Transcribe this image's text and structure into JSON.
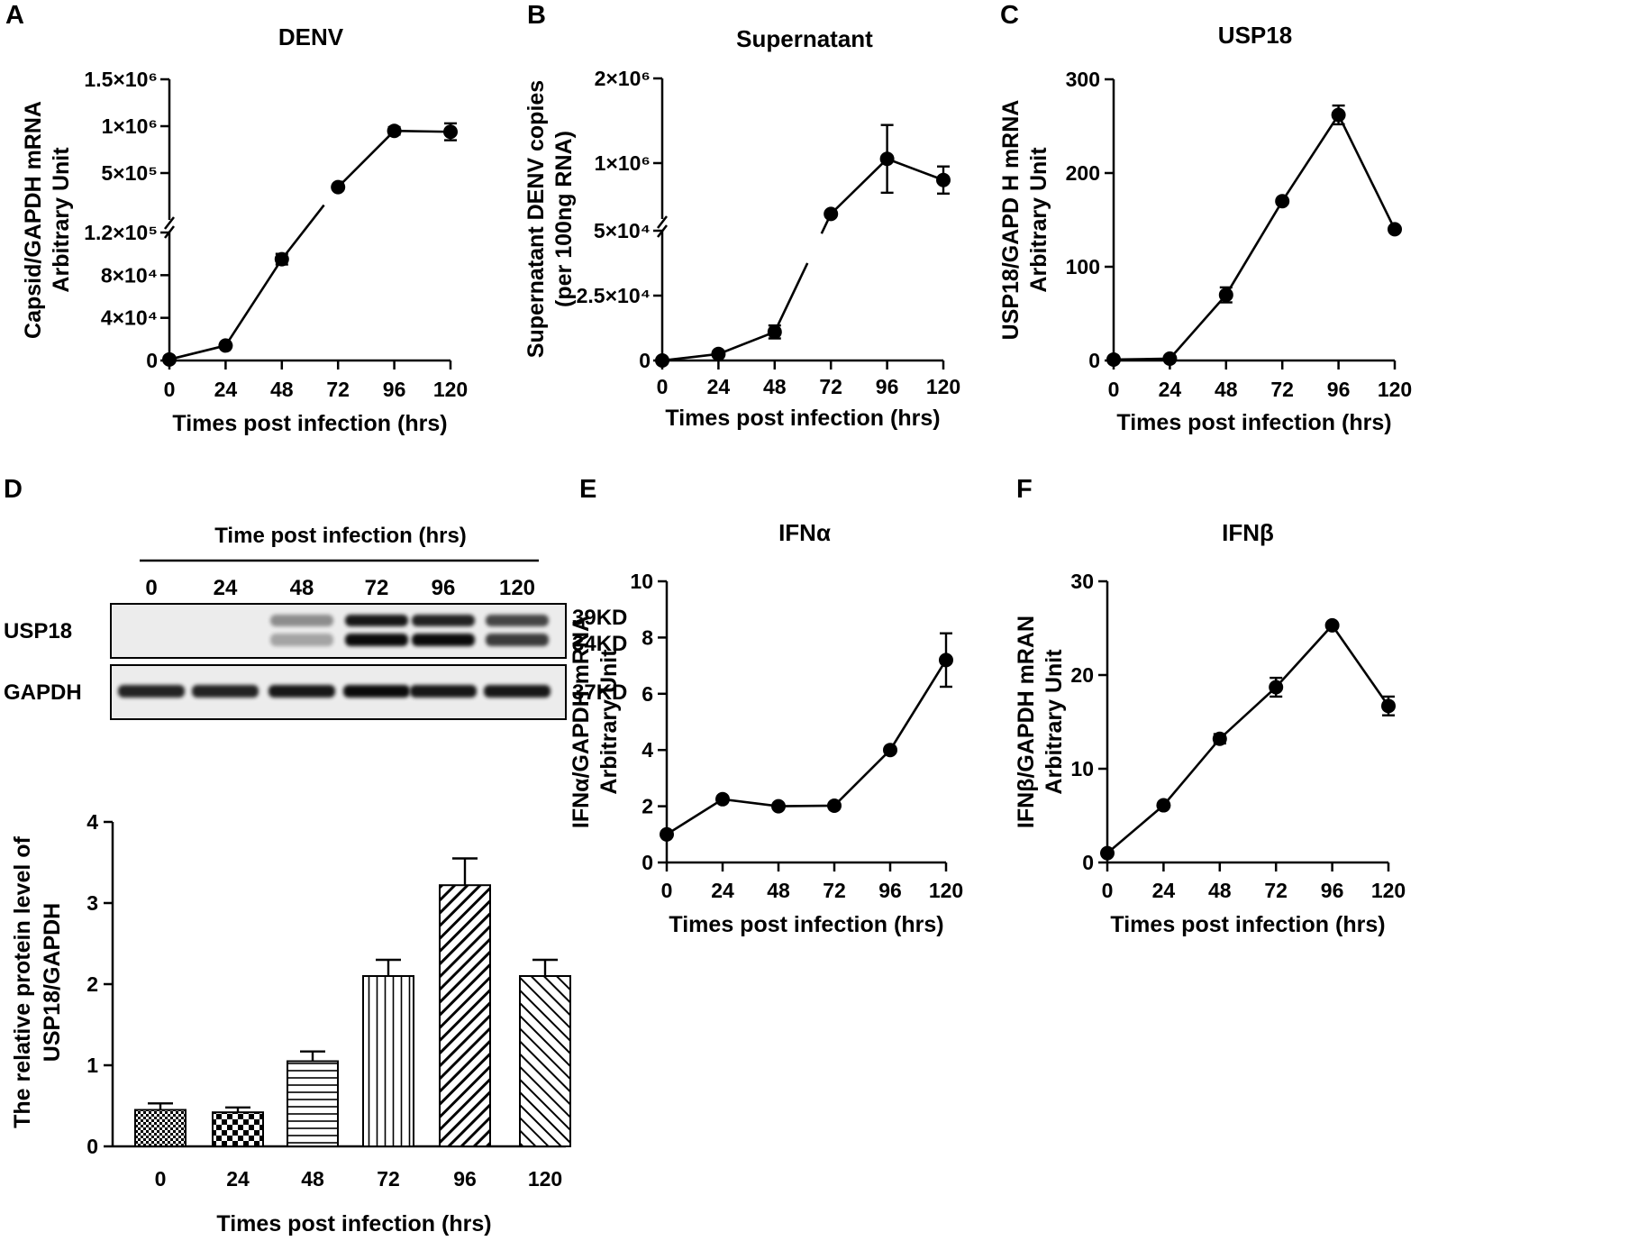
{
  "chart_data": [
    {
      "id": "A",
      "panel_label": "A",
      "type": "line",
      "title": "DENV",
      "ylabel": [
        "Capsid/GAPDH mRNA",
        "Arbitrary Unit"
      ],
      "xlabel": "Times post infection (hrs)",
      "x": [
        0,
        24,
        48,
        72,
        96,
        120
      ],
      "y": [
        1000,
        14000,
        95000,
        350000,
        950000,
        940000
      ],
      "err": [
        0,
        1500,
        5000,
        0,
        40000,
        90000
      ],
      "broken_axis": true,
      "lower_ylim": [
        0,
        120000
      ],
      "upper_ylim": [
        0,
        1500000
      ],
      "break_segment_x": [
        66,
        74
      ],
      "lower_ticks": [
        {
          "v": 0,
          "label": "0"
        },
        {
          "v": 40000,
          "label": "4×10⁴"
        },
        {
          "v": 80000,
          "label": "8×10⁴"
        },
        {
          "v": 120000,
          "label": "1.2×10⁵"
        }
      ],
      "upper_ticks": [
        {
          "v": 500000,
          "label": "5×10⁵"
        },
        {
          "v": 1000000,
          "label": "1×10⁶"
        },
        {
          "v": 1500000,
          "label": "1.5×10⁶"
        }
      ],
      "xticks": [
        "0",
        "24",
        "48",
        "72",
        "96",
        "120"
      ]
    },
    {
      "id": "B",
      "panel_label": "B",
      "type": "line",
      "title": "Supernatant",
      "ylabel": [
        "Supernatant DENV copies",
        "(per 100ng RNA)"
      ],
      "xlabel": "Times post infection (hrs)",
      "x": [
        0,
        24,
        48,
        72,
        96,
        120
      ],
      "y": [
        0,
        2500,
        11000,
        400000,
        1050000,
        800000
      ],
      "err": [
        0,
        1000,
        2500,
        25000,
        400000,
        160000
      ],
      "broken_axis": true,
      "lower_ylim": [
        0,
        50000
      ],
      "upper_ylim": [
        340000,
        2000000
      ],
      "break_segment_x": [
        62,
        68
      ],
      "lower_ticks": [
        {
          "v": 0,
          "label": "0"
        },
        {
          "v": 25000,
          "label": "2.5×10⁴"
        },
        {
          "v": 50000,
          "label": "5×10⁴"
        }
      ],
      "upper_ticks": [
        {
          "v": 1000000,
          "label": "1×10⁶"
        },
        {
          "v": 2000000,
          "label": "2×10⁶"
        }
      ],
      "xticks": [
        "0",
        "24",
        "48",
        "72",
        "96",
        "120"
      ]
    },
    {
      "id": "C",
      "panel_label": "C",
      "type": "line",
      "title": "USP18",
      "ylabel": [
        "USP18/GAPD H mRNA",
        "Arbitrary Unit"
      ],
      "xlabel": "Times post infection (hrs)",
      "x": [
        0,
        24,
        48,
        72,
        96,
        120
      ],
      "y": [
        1,
        2,
        70,
        170,
        262,
        140
      ],
      "err": [
        0,
        0,
        8,
        0,
        10,
        0
      ],
      "ylim": [
        0,
        300
      ],
      "yticks": [
        {
          "v": 0,
          "label": "0"
        },
        {
          "v": 100,
          "label": "100"
        },
        {
          "v": 200,
          "label": "200"
        },
        {
          "v": 300,
          "label": "300"
        }
      ],
      "xticks": [
        "0",
        "24",
        "48",
        "72",
        "96",
        "120"
      ]
    },
    {
      "id": "D",
      "panel_label": "D",
      "type": "bar",
      "ylabel": [
        "The relative protein level of",
        "USP18/GAPDH"
      ],
      "xlabel": "Times post infection (hrs)",
      "categories": [
        "0",
        "24",
        "48",
        "72",
        "96",
        "120"
      ],
      "values": [
        0.45,
        0.42,
        1.05,
        2.1,
        3.22,
        2.1
      ],
      "err": [
        0.08,
        0.06,
        0.12,
        0.2,
        0.33,
        0.2
      ],
      "ylim": [
        0,
        4
      ],
      "yticks": [
        {
          "v": 0,
          "label": "0"
        },
        {
          "v": 1,
          "label": "1"
        },
        {
          "v": 2,
          "label": "2"
        },
        {
          "v": 3,
          "label": "3"
        },
        {
          "v": 4,
          "label": "4"
        }
      ],
      "patterns": [
        "dots",
        "checker",
        "hlines",
        "vlines",
        "diag-up",
        "diag-down"
      ]
    },
    {
      "id": "E",
      "panel_label": "E",
      "type": "line",
      "title": "IFNα",
      "ylabel": [
        "IFNα/GAPDH mRNA",
        "Arbitrary Unit"
      ],
      "xlabel": "Times post infection (hrs)",
      "x": [
        0,
        24,
        48,
        72,
        96,
        120
      ],
      "y": [
        1.0,
        2.25,
        2.0,
        2.02,
        4.0,
        7.2
      ],
      "err": [
        0,
        0,
        0,
        0,
        0,
        0.95
      ],
      "ylim": [
        0,
        10
      ],
      "yticks": [
        {
          "v": 0,
          "label": "0"
        },
        {
          "v": 2,
          "label": "2"
        },
        {
          "v": 4,
          "label": "4"
        },
        {
          "v": 6,
          "label": "6"
        },
        {
          "v": 8,
          "label": "8"
        },
        {
          "v": 10,
          "label": "10"
        }
      ],
      "xticks": [
        "0",
        "24",
        "48",
        "72",
        "96",
        "120"
      ]
    },
    {
      "id": "F",
      "panel_label": "F",
      "type": "line",
      "title": "IFNβ",
      "ylabel": [
        "IFNβ/GAPDH mRAN",
        "Arbitrary Unit"
      ],
      "xlabel": "Times post infection (hrs)",
      "x": [
        0,
        24,
        48,
        72,
        96,
        120
      ],
      "y": [
        1.0,
        6.1,
        13.2,
        18.7,
        25.3,
        16.7
      ],
      "err": [
        0,
        0,
        0.5,
        1.0,
        0,
        1.0
      ],
      "ylim": [
        0,
        30
      ],
      "yticks": [
        {
          "v": 0,
          "label": "0"
        },
        {
          "v": 10,
          "label": "10"
        },
        {
          "v": 20,
          "label": "20"
        },
        {
          "v": 30,
          "label": "30"
        }
      ],
      "xticks": [
        "0",
        "24",
        "48",
        "72",
        "96",
        "120"
      ]
    }
  ],
  "blot": {
    "header": "Time post infection (hrs)",
    "lanes": [
      "0",
      "24",
      "48",
      "72",
      "96",
      "120"
    ],
    "rows": [
      {
        "label": "USP18",
        "sizes": [
          "39KD",
          "34KD"
        ],
        "intensity_upper": [
          0,
          0,
          0.4,
          0.9,
          0.85,
          0.7
        ],
        "intensity_lower": [
          0,
          0,
          0.3,
          0.95,
          0.95,
          0.75
        ]
      },
      {
        "label": "GAPDH",
        "sizes": [
          "37KD"
        ],
        "intensity": [
          0.85,
          0.85,
          0.9,
          0.95,
          0.9,
          0.9
        ]
      }
    ]
  }
}
